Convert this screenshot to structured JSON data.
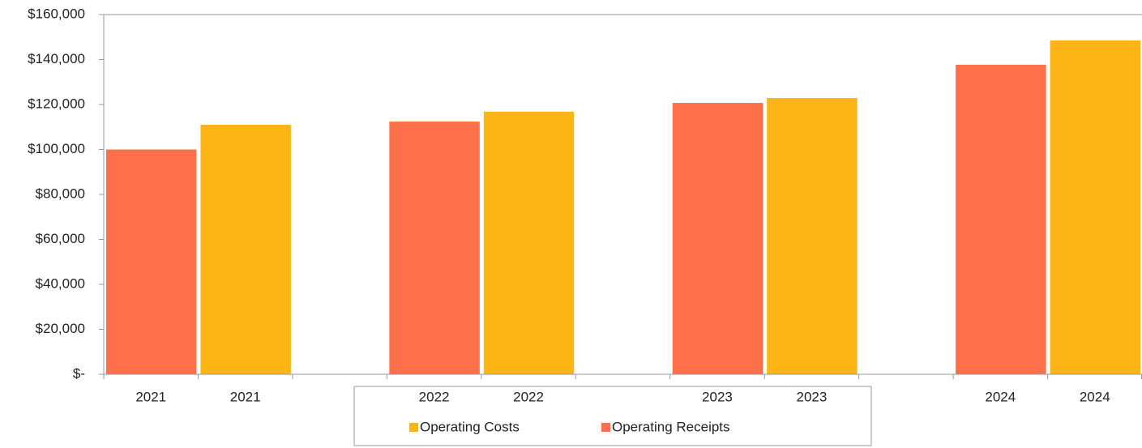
{
  "chart_data": {
    "type": "bar",
    "categories": [
      "2021",
      "2021",
      null,
      "2022",
      "2022",
      null,
      "2023",
      "2023",
      null,
      "2024",
      "2024"
    ],
    "series": [
      {
        "name": "Operating Costs",
        "color": "#fdb515",
        "values": [
          null,
          111000,
          null,
          null,
          116800,
          null,
          null,
          122900,
          null,
          null,
          148500
        ]
      },
      {
        "name": "Operating Receipts",
        "color": "#ff704a",
        "values": [
          100000,
          null,
          null,
          112400,
          null,
          null,
          120700,
          null,
          null,
          137700,
          null
        ]
      }
    ],
    "ylim": [
      0,
      160000
    ],
    "yticks": [
      {
        "value": 0,
        "label": "$-"
      },
      {
        "value": 20000,
        "label": "$20,000"
      },
      {
        "value": 40000,
        "label": "$40,000"
      },
      {
        "value": 60000,
        "label": "$60,000"
      },
      {
        "value": 80000,
        "label": "$80,000"
      },
      {
        "value": 100000,
        "label": "$100,000"
      },
      {
        "value": 120000,
        "label": "$120,000"
      },
      {
        "value": 140000,
        "label": "$140,000"
      },
      {
        "value": 160000,
        "label": "$160,000"
      }
    ],
    "grid": false,
    "legend": "bottom"
  }
}
